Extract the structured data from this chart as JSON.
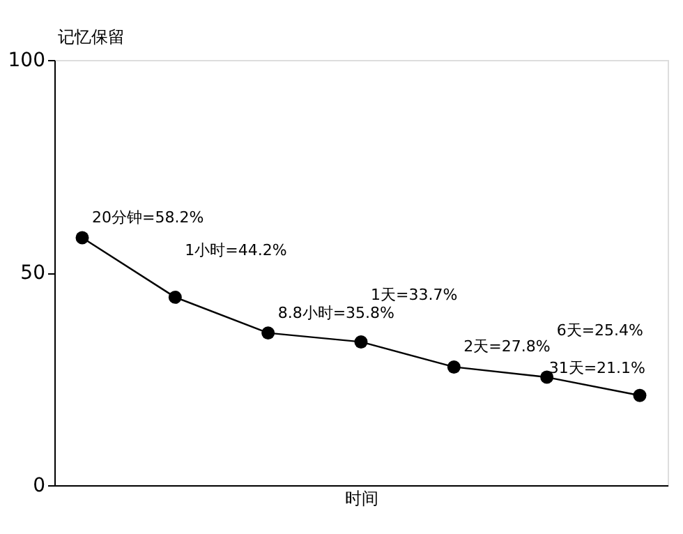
{
  "chart_data": {
    "type": "line",
    "xlabel": "时间",
    "ylabel": "记忆保留",
    "categories": [
      null,
      null,
      null,
      null,
      null,
      null,
      null
    ],
    "series": [
      {
        "color": "#000000",
        "values": [
          58.2,
          44.2,
          35.8,
          33.7,
          27.8,
          25.4,
          21.1
        ],
        "value_labels": [
          "20分钟=58.2%",
          "1小时=44.2%",
          "8.8小时=35.8%",
          "1天=33.7%",
          "2天=27.8%",
          "6天=25.4%",
          "31天=21.1%"
        ]
      }
    ],
    "ylim": [
      0,
      100
    ],
    "yticks": [
      0,
      50,
      100
    ],
    "tick_labels": "y",
    "grid": false,
    "marker": "circle",
    "line_style": "solid"
  }
}
